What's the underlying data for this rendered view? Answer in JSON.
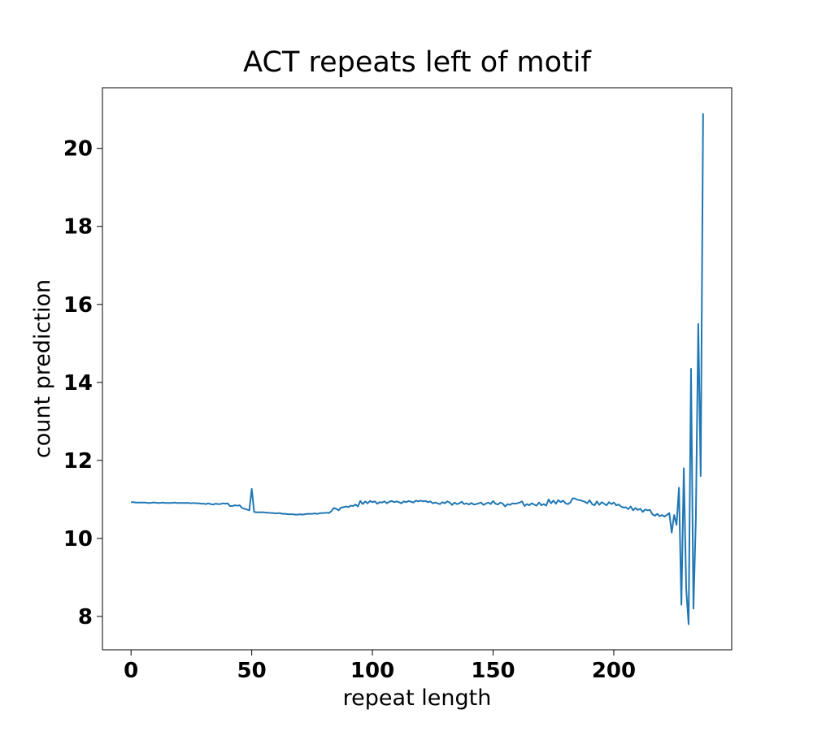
{
  "chart_data": {
    "type": "line",
    "title": "ACT repeats left of motif",
    "xlabel": "repeat length",
    "ylabel": "count prediction",
    "xlim": [
      -11.85,
      248.85
    ],
    "ylim": [
      7.145,
      21.555
    ],
    "xticks": [
      0,
      50,
      100,
      150,
      200
    ],
    "yticks": [
      8,
      10,
      12,
      14,
      16,
      18,
      20
    ],
    "grid": false,
    "x": [
      0,
      1,
      2,
      3,
      4,
      5,
      6,
      7,
      8,
      9,
      10,
      11,
      12,
      13,
      14,
      15,
      16,
      17,
      18,
      19,
      20,
      21,
      22,
      23,
      24,
      25,
      26,
      27,
      28,
      29,
      30,
      31,
      32,
      33,
      34,
      35,
      36,
      37,
      38,
      39,
      40,
      41,
      42,
      43,
      44,
      45,
      46,
      47,
      48,
      49,
      50,
      51,
      52,
      53,
      54,
      55,
      56,
      57,
      58,
      59,
      60,
      61,
      62,
      63,
      64,
      65,
      66,
      67,
      68,
      69,
      70,
      71,
      72,
      73,
      74,
      75,
      76,
      77,
      78,
      79,
      80,
      81,
      82,
      83,
      84,
      85,
      86,
      87,
      88,
      89,
      90,
      91,
      92,
      93,
      94,
      95,
      96,
      97,
      98,
      99,
      100,
      101,
      102,
      103,
      104,
      105,
      106,
      107,
      108,
      109,
      110,
      111,
      112,
      113,
      114,
      115,
      116,
      117,
      118,
      119,
      120,
      121,
      122,
      123,
      124,
      125,
      126,
      127,
      128,
      129,
      130,
      131,
      132,
      133,
      134,
      135,
      136,
      137,
      138,
      139,
      140,
      141,
      142,
      143,
      144,
      145,
      146,
      147,
      148,
      149,
      150,
      151,
      152,
      153,
      154,
      155,
      156,
      157,
      158,
      159,
      160,
      161,
      162,
      163,
      164,
      165,
      166,
      167,
      168,
      169,
      170,
      171,
      172,
      173,
      174,
      175,
      176,
      177,
      178,
      179,
      180,
      181,
      182,
      183,
      184,
      185,
      186,
      187,
      188,
      189,
      190,
      191,
      192,
      193,
      194,
      195,
      196,
      197,
      198,
      199,
      200,
      201,
      202,
      203,
      204,
      205,
      206,
      207,
      208,
      209,
      210,
      211,
      212,
      213,
      214,
      215,
      216,
      217,
      218,
      219,
      220,
      221,
      222,
      223,
      224,
      225,
      226,
      227,
      228,
      229,
      230,
      231,
      232,
      233,
      234,
      235,
      236,
      237
    ],
    "series": [
      {
        "name": "count prediction",
        "color": "#1f77b4",
        "values": [
          10.93,
          10.93,
          10.92,
          10.92,
          10.92,
          10.92,
          10.92,
          10.91,
          10.91,
          10.92,
          10.92,
          10.91,
          10.91,
          10.92,
          10.91,
          10.91,
          10.91,
          10.91,
          10.92,
          10.91,
          10.91,
          10.91,
          10.91,
          10.91,
          10.91,
          10.9,
          10.91,
          10.9,
          10.9,
          10.89,
          10.89,
          10.88,
          10.9,
          10.88,
          10.87,
          10.89,
          10.88,
          10.88,
          10.9,
          10.89,
          10.9,
          10.83,
          10.83,
          10.85,
          10.84,
          10.85,
          10.78,
          10.76,
          10.74,
          10.72,
          11.27,
          10.68,
          10.67,
          10.67,
          10.67,
          10.67,
          10.66,
          10.66,
          10.65,
          10.65,
          10.64,
          10.65,
          10.64,
          10.63,
          10.63,
          10.62,
          10.62,
          10.62,
          10.61,
          10.61,
          10.62,
          10.61,
          10.62,
          10.63,
          10.63,
          10.63,
          10.64,
          10.63,
          10.64,
          10.65,
          10.65,
          10.66,
          10.65,
          10.7,
          10.78,
          10.76,
          10.72,
          10.79,
          10.8,
          10.82,
          10.8,
          10.84,
          10.83,
          10.87,
          10.82,
          10.96,
          10.88,
          10.95,
          10.9,
          10.96,
          10.93,
          10.95,
          10.89,
          10.93,
          10.92,
          10.95,
          10.9,
          10.94,
          10.96,
          10.93,
          10.95,
          10.93,
          10.9,
          10.95,
          10.93,
          10.96,
          10.94,
          10.92,
          10.97,
          10.95,
          10.97,
          10.95,
          10.96,
          10.93,
          10.95,
          10.9,
          10.92,
          10.9,
          10.88,
          10.93,
          10.9,
          10.95,
          10.92,
          10.86,
          10.92,
          10.88,
          10.9,
          10.94,
          10.88,
          10.9,
          10.87,
          10.91,
          10.87,
          10.88,
          10.9,
          10.92,
          10.86,
          10.89,
          10.92,
          10.88,
          10.96,
          10.89,
          10.87,
          10.92,
          10.89,
          10.82,
          10.88,
          10.86,
          10.9,
          10.89,
          10.9,
          10.92,
          10.95,
          10.83,
          10.88,
          10.85,
          10.9,
          10.87,
          10.84,
          10.92,
          10.85,
          10.88,
          10.84,
          11.0,
          10.9,
          10.97,
          10.89,
          10.98,
          10.93,
          10.97,
          10.9,
          10.88,
          10.92,
          11.03,
          11.02,
          10.99,
          10.98,
          10.96,
          10.94,
          10.9,
          10.98,
          10.88,
          10.85,
          10.95,
          10.86,
          10.93,
          10.89,
          10.85,
          10.93,
          10.88,
          10.92,
          10.85,
          10.87,
          10.82,
          10.79,
          10.8,
          10.75,
          10.82,
          10.72,
          10.78,
          10.73,
          10.76,
          10.68,
          10.74,
          10.72,
          10.73,
          10.62,
          10.58,
          10.63,
          10.57,
          10.6,
          10.56,
          10.6,
          10.65,
          10.15,
          10.6,
          10.35,
          11.3,
          8.3,
          11.8,
          8.7,
          7.8,
          14.35,
          8.2,
          10.5,
          15.5,
          11.6,
          20.9
        ]
      }
    ]
  }
}
